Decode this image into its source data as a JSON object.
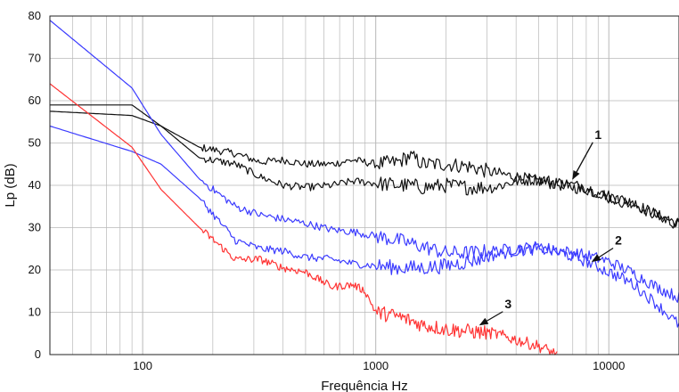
{
  "chart_data": {
    "type": "line",
    "title": "",
    "xlabel": "Frequência Hz",
    "ylabel": "Lp (dB)",
    "xscale": "log",
    "xlim": [
      40,
      20000
    ],
    "ylim": [
      0,
      80
    ],
    "grid": true,
    "x_tick_labels": [
      "100",
      "1000",
      "10000"
    ],
    "x_tick_values": [
      100,
      1000,
      10000
    ],
    "y_tick_labels": [
      "0",
      "10",
      "20",
      "30",
      "40",
      "50",
      "60",
      "70",
      "80"
    ],
    "y_tick_values": [
      0,
      10,
      20,
      30,
      40,
      50,
      60,
      70,
      80
    ],
    "series": [
      {
        "color": "#111111",
        "x": [
          40,
          90,
          120,
          175,
          250,
          320,
          400,
          500,
          650,
          800,
          1000,
          1250,
          1400,
          1600,
          2000,
          2500,
          3200,
          4000,
          5000,
          6300,
          8000,
          10000,
          12500,
          16000,
          20000
        ],
        "y": [
          59,
          59,
          54,
          49,
          47.5,
          45.5,
          46,
          45,
          45,
          46,
          45,
          45.5,
          47,
          45,
          45,
          44.5,
          43,
          42,
          41,
          40,
          39,
          37.5,
          36,
          33,
          31
        ]
      },
      {
        "color": "#111111",
        "x": [
          40,
          90,
          120,
          175,
          250,
          320,
          400,
          500,
          650,
          800,
          1000,
          1250,
          1400,
          1600,
          2000,
          2500,
          3200,
          4000,
          5000,
          6300,
          8000,
          10000,
          12500,
          16000,
          20000
        ],
        "y": [
          57.5,
          56.5,
          54,
          46.5,
          45,
          42,
          40,
          39.5,
          40,
          41,
          40.5,
          40,
          40,
          39.5,
          40,
          39.5,
          39.5,
          41,
          41.5,
          40.5,
          39.5,
          37,
          35.5,
          33,
          30.5
        ]
      },
      {
        "color": "#3b3bff",
        "x": [
          40,
          90,
          120,
          175,
          250,
          320,
          400,
          500,
          650,
          800,
          1000,
          1250,
          1600,
          2000,
          2500,
          3200,
          4000,
          5000,
          6300,
          8000,
          10000,
          12500,
          16000,
          20000
        ],
        "y": [
          79,
          63,
          52,
          41.5,
          35,
          33,
          32,
          31,
          29.5,
          29,
          28,
          27,
          25.5,
          24,
          24,
          24.5,
          25,
          25.5,
          24.5,
          23.5,
          22,
          19.5,
          16,
          13.5
        ]
      },
      {
        "color": "#3b3bff",
        "x": [
          40,
          90,
          120,
          175,
          250,
          320,
          400,
          500,
          650,
          800,
          1000,
          1250,
          1600,
          2000,
          2500,
          3200,
          4000,
          5000,
          6300,
          8000,
          10000,
          12500,
          16000,
          20000
        ],
        "y": [
          54,
          48,
          45,
          37,
          27,
          25,
          24.5,
          23,
          22.5,
          21.5,
          21,
          20.5,
          20.5,
          21,
          22,
          23.5,
          24.5,
          25,
          24,
          22,
          19.5,
          17,
          12,
          7
        ]
      },
      {
        "color": "#ff3333",
        "x": [
          40,
          90,
          120,
          175,
          250,
          320,
          400,
          500,
          650,
          800,
          900,
          1000,
          1250,
          1600,
          2000,
          2500,
          3200,
          4000,
          5000,
          6000
        ],
        "y": [
          64,
          49,
          39,
          30,
          22.5,
          22.5,
          20.5,
          19.5,
          16,
          16.5,
          15,
          10,
          9,
          7,
          6,
          5.5,
          5,
          3.5,
          2,
          0
        ]
      }
    ],
    "annotations": [
      {
        "text": "1",
        "x": 9000,
        "y": 51,
        "arrow_to_x": 7000,
        "arrow_to_y": 41.5
      },
      {
        "text": "2",
        "x": 11000,
        "y": 26,
        "arrow_to_x": 8500,
        "arrow_to_y": 22
      },
      {
        "text": "3",
        "x": 3700,
        "y": 11,
        "arrow_to_x": 2800,
        "arrow_to_y": 7
      }
    ]
  }
}
